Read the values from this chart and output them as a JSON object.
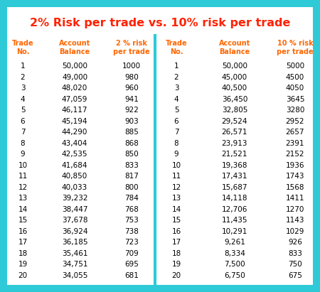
{
  "title": "2% Risk per trade vs. 10% risk per trade",
  "title_color": "#FF2200",
  "title_fontsize": 11.5,
  "bg_color": "#2ECAD8",
  "table_bg": "#FFFFFF",
  "header_color": "#FF6600",
  "left_headers": [
    "Trade\nNo.",
    "Account\nBalance",
    "2 % risk\nper trade"
  ],
  "right_headers": [
    "Trade\nNo.",
    "Account\nBalance",
    "10 % risk\nper trade"
  ],
  "left_data": [
    [
      "1",
      "50,000",
      "1000"
    ],
    [
      "2",
      "49,000",
      "980"
    ],
    [
      "3",
      "48,020",
      "960"
    ],
    [
      "4",
      "47,059",
      "941"
    ],
    [
      "5",
      "46,117",
      "922"
    ],
    [
      "6",
      "45,194",
      "903"
    ],
    [
      "7",
      "44,290",
      "885"
    ],
    [
      "8",
      "43,404",
      "868"
    ],
    [
      "9",
      "42,535",
      "850"
    ],
    [
      "10",
      "41,684",
      "833"
    ],
    [
      "11",
      "40,850",
      "817"
    ],
    [
      "12",
      "40,033",
      "800"
    ],
    [
      "13",
      "39,232",
      "784"
    ],
    [
      "14",
      "38,447",
      "768"
    ],
    [
      "15",
      "37,678",
      "753"
    ],
    [
      "16",
      "36,924",
      "738"
    ],
    [
      "17",
      "36,185",
      "723"
    ],
    [
      "18",
      "35,461",
      "709"
    ],
    [
      "19",
      "34,751",
      "695"
    ],
    [
      "20",
      "34,055",
      "681"
    ]
  ],
  "right_data": [
    [
      "1",
      "50,000",
      "5000"
    ],
    [
      "2",
      "45,000",
      "4500"
    ],
    [
      "3",
      "40,500",
      "4050"
    ],
    [
      "4",
      "36,450",
      "3645"
    ],
    [
      "5",
      "32,805",
      "3280"
    ],
    [
      "6",
      "29,524",
      "2952"
    ],
    [
      "7",
      "26,571",
      "2657"
    ],
    [
      "8",
      "23,913",
      "2391"
    ],
    [
      "9",
      "21,521",
      "2152"
    ],
    [
      "10",
      "19,368",
      "1936"
    ],
    [
      "11",
      "17,431",
      "1743"
    ],
    [
      "12",
      "15,687",
      "1568"
    ],
    [
      "13",
      "14,118",
      "1411"
    ],
    [
      "14",
      "12,706",
      "1270"
    ],
    [
      "15",
      "11,435",
      "1143"
    ],
    [
      "16",
      "10,291",
      "1029"
    ],
    [
      "17",
      "9,261",
      "926"
    ],
    [
      "18",
      "8,334",
      "833"
    ],
    [
      "19",
      "7,500",
      "750"
    ],
    [
      "20",
      "6,750",
      "675"
    ]
  ],
  "fig_width": 4.5,
  "fig_height": 4.11,
  "dpi": 100
}
